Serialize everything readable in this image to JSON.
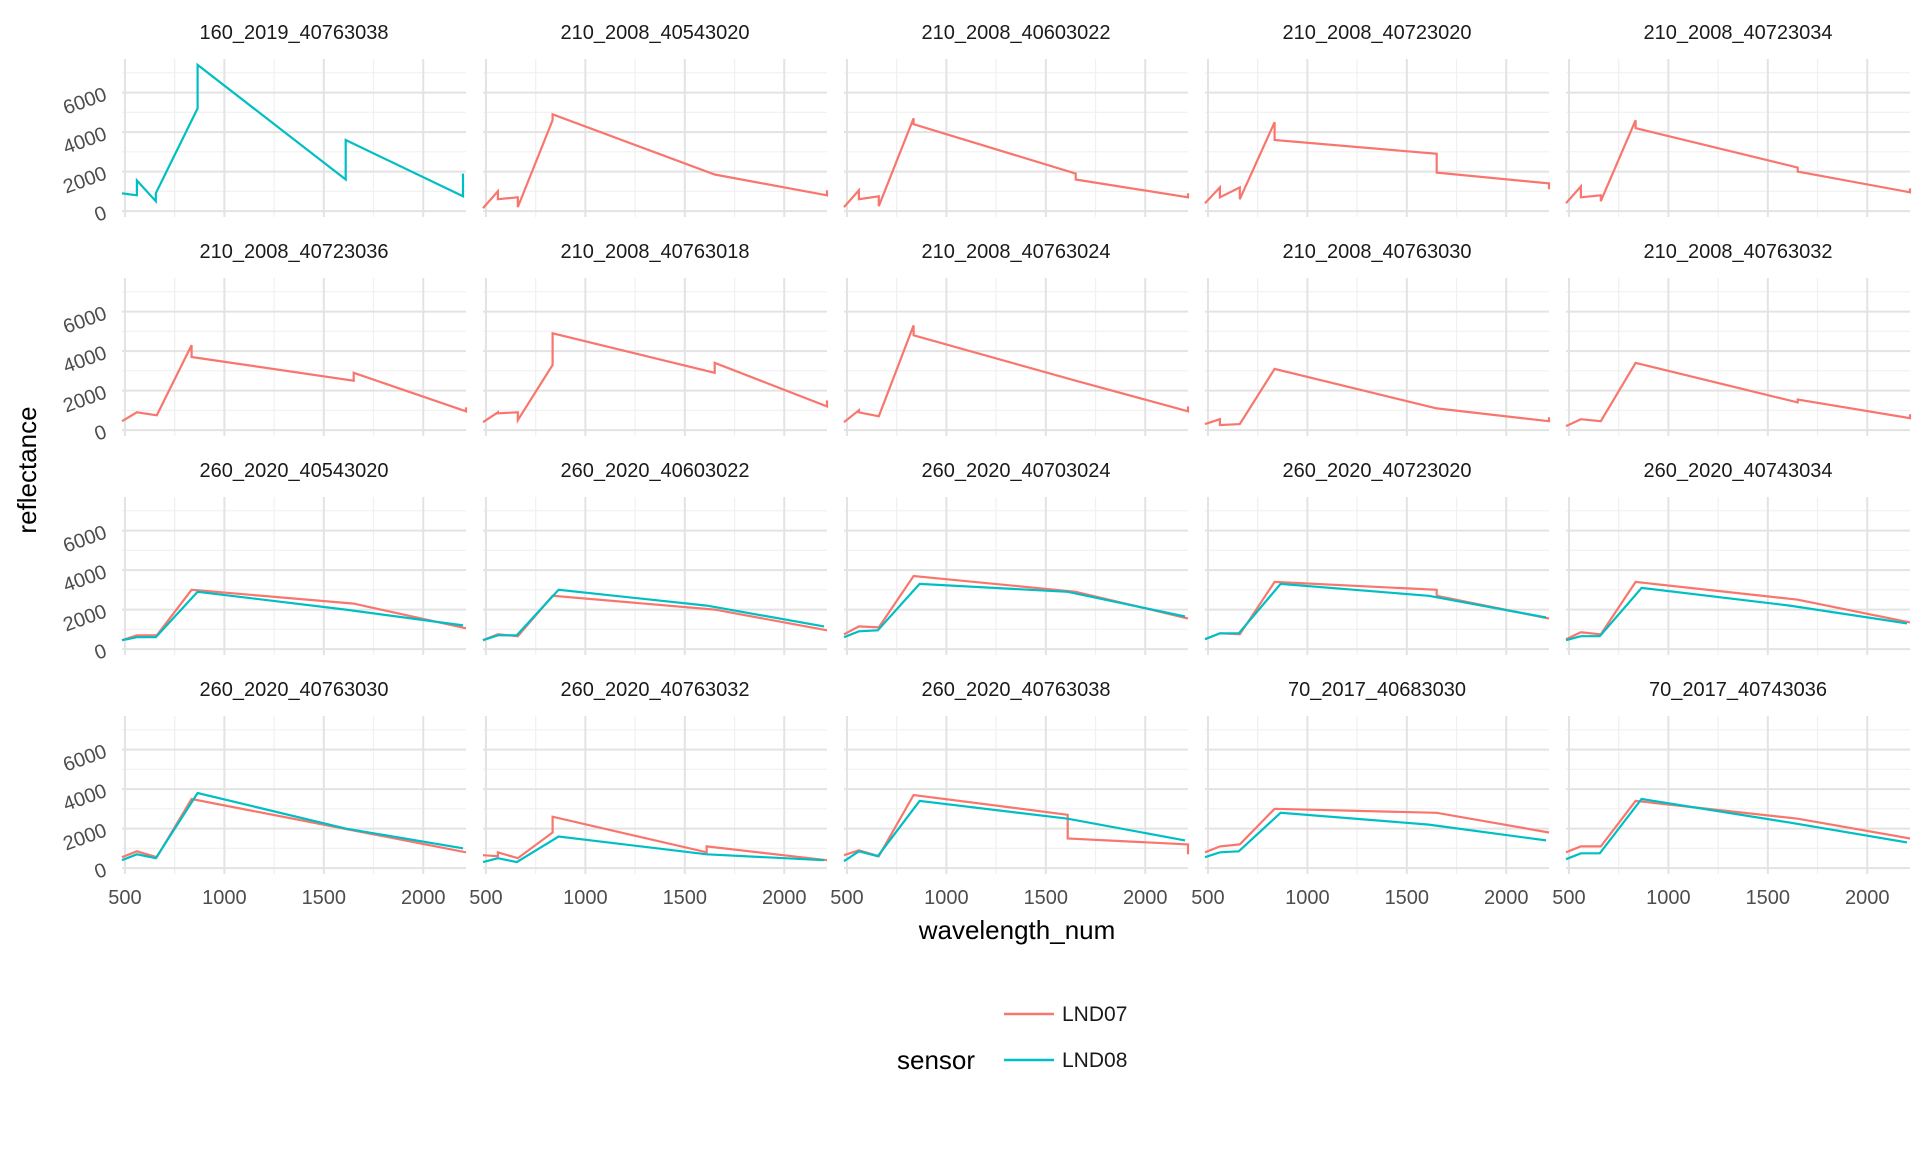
{
  "chart_data": {
    "type": "line",
    "facet_layout": "wrap",
    "xlabel": "wavelength_num",
    "ylabel": "reflectance",
    "xlim": [
      485,
      2215
    ],
    "ylim": [
      -300,
      7700
    ],
    "x_ticks": [
      500,
      1000,
      1500,
      2000
    ],
    "y_ticks": [
      0,
      2000,
      4000,
      6000
    ],
    "grid": true,
    "legend": {
      "title": "sensor",
      "position": "bottom",
      "entries": [
        {
          "name": "LND07",
          "color": "#F8766D"
        },
        {
          "name": "LND08",
          "color": "#00BFC4"
        }
      ]
    },
    "panels": [
      {
        "title": "160_2019_40763038",
        "series": [
          {
            "name": "LND08",
            "x": [
              485,
              560,
              560,
              655,
              655,
              865,
              865,
              1610,
              1610,
              2200,
              2200
            ],
            "y": [
              900,
              800,
              1550,
              500,
              900,
              5200,
              7400,
              1600,
              3600,
              750,
              1900
            ]
          }
        ]
      },
      {
        "title": "210_2008_40543020",
        "series": [
          {
            "name": "LND07",
            "x": [
              485,
              560,
              560,
              660,
              660,
              835,
              835,
              1650,
              1650,
              2215,
              2215
            ],
            "y": [
              150,
              1000,
              600,
              700,
              200,
              4600,
              4900,
              1850,
              1850,
              800,
              1050
            ]
          }
        ]
      },
      {
        "title": "210_2008_40603022",
        "series": [
          {
            "name": "LND07",
            "x": [
              485,
              560,
              560,
              660,
              660,
              835,
              835,
              1650,
              1650,
              2215,
              2215
            ],
            "y": [
              200,
              1050,
              600,
              750,
              250,
              4700,
              4400,
              1900,
              1600,
              700,
              900
            ]
          }
        ]
      },
      {
        "title": "210_2008_40723020",
        "series": [
          {
            "name": "LND07",
            "x": [
              485,
              560,
              560,
              660,
              660,
              835,
              835,
              1650,
              1650,
              2215,
              2215
            ],
            "y": [
              400,
              1200,
              700,
              1200,
              600,
              4500,
              3600,
              2900,
              1950,
              1400,
              1100
            ]
          }
        ]
      },
      {
        "title": "210_2008_40723034",
        "series": [
          {
            "name": "LND07",
            "x": [
              485,
              560,
              560,
              660,
              660,
              835,
              835,
              1650,
              1650,
              2215,
              2215
            ],
            "y": [
              400,
              1250,
              700,
              800,
              500,
              4600,
              4200,
              2200,
              2000,
              950,
              1150
            ]
          }
        ]
      },
      {
        "title": "210_2008_40723036",
        "series": [
          {
            "name": "LND07",
            "x": [
              485,
              560,
              560,
              660,
              660,
              835,
              835,
              1650,
              1650,
              2215,
              2215
            ],
            "y": [
              450,
              900,
              900,
              750,
              750,
              4300,
              3700,
              2500,
              2900,
              950,
              1150
            ]
          }
        ]
      },
      {
        "title": "210_2008_40763018",
        "series": [
          {
            "name": "LND07",
            "x": [
              485,
              560,
              560,
              660,
              660,
              835,
              835,
              1650,
              1650,
              2215,
              2215
            ],
            "y": [
              400,
              900,
              850,
              900,
              500,
              3300,
              4900,
              2900,
              3400,
              1200,
              1500
            ]
          }
        ]
      },
      {
        "title": "210_2008_40763024",
        "series": [
          {
            "name": "LND07",
            "x": [
              485,
              560,
              560,
              660,
              660,
              835,
              835,
              1650,
              1650,
              2215,
              2215
            ],
            "y": [
              400,
              1000,
              900,
              700,
              700,
              5300,
              4800,
              2500,
              2500,
              950,
              1200
            ]
          }
        ]
      },
      {
        "title": "210_2008_40763030",
        "series": [
          {
            "name": "LND07",
            "x": [
              485,
              560,
              560,
              660,
              660,
              835,
              835,
              1650,
              1650,
              2215,
              2215
            ],
            "y": [
              300,
              550,
              250,
              300,
              300,
              3100,
              3100,
              1100,
              1100,
              450,
              650
            ]
          }
        ]
      },
      {
        "title": "210_2008_40763032",
        "series": [
          {
            "name": "LND07",
            "x": [
              485,
              560,
              560,
              660,
              660,
              835,
              835,
              1650,
              1650,
              2215,
              2215
            ],
            "y": [
              200,
              550,
              550,
              450,
              450,
              3400,
              3400,
              1400,
              1550,
              600,
              800
            ]
          }
        ]
      },
      {
        "title": "260_2020_40543020",
        "series": [
          {
            "name": "LND07",
            "x": [
              485,
              560,
              560,
              660,
              660,
              835,
              835,
              1650,
              1650,
              2215,
              2215
            ],
            "y": [
              450,
              700,
              700,
              700,
              700,
              3000,
              3000,
              2300,
              2300,
              1050,
              1050
            ]
          },
          {
            "name": "LND08",
            "x": [
              485,
              560,
              560,
              655,
              655,
              865,
              865,
              1610,
              1610,
              2200,
              2200
            ],
            "y": [
              450,
              600,
              600,
              600,
              600,
              2900,
              2900,
              2000,
              2000,
              1200,
              1200
            ]
          }
        ]
      },
      {
        "title": "260_2020_40603022",
        "series": [
          {
            "name": "LND07",
            "x": [
              485,
              560,
              560,
              660,
              660,
              835,
              835,
              1650,
              1650,
              2215,
              2215
            ],
            "y": [
              450,
              750,
              750,
              650,
              650,
              2700,
              2700,
              2000,
              2000,
              950,
              950
            ]
          },
          {
            "name": "LND08",
            "x": [
              485,
              560,
              560,
              655,
              655,
              865,
              865,
              1610,
              1610,
              2200,
              2200
            ],
            "y": [
              450,
              700,
              700,
              700,
              700,
              3000,
              3000,
              2200,
              2200,
              1150,
              1150
            ]
          }
        ]
      },
      {
        "title": "260_2020_40703024",
        "series": [
          {
            "name": "LND07",
            "x": [
              485,
              560,
              560,
              660,
              660,
              835,
              835,
              1650,
              1650,
              2215,
              2215
            ],
            "y": [
              750,
              1150,
              1150,
              1100,
              1100,
              3700,
              3700,
              2900,
              2900,
              1550,
              1550
            ]
          },
          {
            "name": "LND08",
            "x": [
              485,
              560,
              560,
              655,
              655,
              865,
              865,
              1610,
              1610,
              2200,
              2200
            ],
            "y": [
              600,
              900,
              900,
              950,
              950,
              3300,
              3300,
              2900,
              2900,
              1650,
              1650
            ]
          }
        ]
      },
      {
        "title": "260_2020_40723020",
        "series": [
          {
            "name": "LND07",
            "x": [
              485,
              560,
              560,
              660,
              660,
              835,
              835,
              1650,
              1650,
              2215,
              2215
            ],
            "y": [
              500,
              800,
              800,
              750,
              750,
              3400,
              3400,
              3000,
              2700,
              1550,
              1550
            ]
          },
          {
            "name": "LND08",
            "x": [
              485,
              560,
              560,
              655,
              655,
              865,
              865,
              1610,
              1610,
              2200,
              2200
            ],
            "y": [
              500,
              800,
              800,
              800,
              800,
              3300,
              3300,
              2700,
              2700,
              1600,
              1600
            ]
          }
        ]
      },
      {
        "title": "260_2020_40743034",
        "series": [
          {
            "name": "LND07",
            "x": [
              485,
              560,
              560,
              660,
              660,
              835,
              835,
              1650,
              1650,
              2215,
              2215
            ],
            "y": [
              500,
              850,
              850,
              750,
              750,
              3400,
              3400,
              2500,
              2500,
              1350,
              1350
            ]
          },
          {
            "name": "LND08",
            "x": [
              485,
              560,
              560,
              655,
              655,
              865,
              865,
              1610,
              1610,
              2200,
              2200
            ],
            "y": [
              450,
              650,
              650,
              650,
              650,
              3100,
              3100,
              2200,
              2200,
              1300,
              1300
            ]
          }
        ]
      },
      {
        "title": "260_2020_40763030",
        "series": [
          {
            "name": "LND07",
            "x": [
              485,
              560,
              560,
              660,
              660,
              835,
              835,
              1650,
              1650,
              2215,
              2215
            ],
            "y": [
              550,
              850,
              850,
              550,
              550,
              3500,
              3500,
              1900,
              1900,
              800,
              800
            ]
          },
          {
            "name": "LND08",
            "x": [
              485,
              560,
              560,
              655,
              655,
              865,
              865,
              1610,
              1610,
              2200,
              2200
            ],
            "y": [
              400,
              700,
              700,
              500,
              500,
              3800,
              3800,
              2000,
              2000,
              1000,
              1000
            ]
          }
        ]
      },
      {
        "title": "260_2020_40763032",
        "series": [
          {
            "name": "LND07",
            "x": [
              485,
              560,
              560,
              660,
              660,
              835,
              835,
              1610,
              1610,
              2215,
              2215
            ],
            "y": [
              650,
              600,
              800,
              500,
              500,
              1800,
              2600,
              800,
              1100,
              400,
              400
            ]
          },
          {
            "name": "LND08",
            "x": [
              485,
              560,
              560,
              655,
              655,
              865,
              865,
              1610,
              1610,
              2200,
              2200
            ],
            "y": [
              300,
              500,
              500,
              300,
              300,
              1600,
              1600,
              700,
              700,
              400,
              400
            ]
          }
        ]
      },
      {
        "title": "260_2020_40763038",
        "series": [
          {
            "name": "LND07",
            "x": [
              485,
              560,
              560,
              660,
              660,
              835,
              835,
              1610,
              1610,
              2215,
              2215
            ],
            "y": [
              650,
              900,
              900,
              600,
              600,
              3700,
              3700,
              2700,
              1500,
              1200,
              700
            ]
          },
          {
            "name": "LND08",
            "x": [
              485,
              560,
              560,
              655,
              655,
              865,
              865,
              1610,
              1610,
              2200,
              2200
            ],
            "y": [
              350,
              850,
              850,
              600,
              600,
              3400,
              3400,
              2500,
              2500,
              1400,
              1400
            ]
          }
        ]
      },
      {
        "title": "70_2017_40683030",
        "series": [
          {
            "name": "LND07",
            "x": [
              485,
              560,
              560,
              660,
              660,
              835,
              835,
              1650,
              1650,
              2215,
              2215
            ],
            "y": [
              800,
              1100,
              1100,
              1200,
              1200,
              3000,
              3000,
              2800,
              2800,
              1800,
              1800
            ]
          },
          {
            "name": "LND08",
            "x": [
              485,
              560,
              560,
              655,
              655,
              865,
              865,
              1610,
              1610,
              2200,
              2200
            ],
            "y": [
              550,
              800,
              800,
              850,
              850,
              2800,
              2800,
              2200,
              2200,
              1400,
              1400
            ]
          }
        ]
      },
      {
        "title": "70_2017_40743036",
        "series": [
          {
            "name": "LND07",
            "x": [
              485,
              560,
              560,
              660,
              660,
              835,
              835,
              1650,
              1650,
              2215,
              2215
            ],
            "y": [
              800,
              1100,
              1100,
              1100,
              1100,
              3400,
              3400,
              2500,
              2500,
              1500,
              1500
            ]
          },
          {
            "name": "LND08",
            "x": [
              485,
              560,
              560,
              655,
              655,
              865,
              865,
              1610,
              1610,
              2200,
              2200
            ],
            "y": [
              450,
              750,
              750,
              750,
              750,
              3500,
              3500,
              2300,
              2300,
              1300,
              1300
            ]
          }
        ]
      }
    ]
  }
}
